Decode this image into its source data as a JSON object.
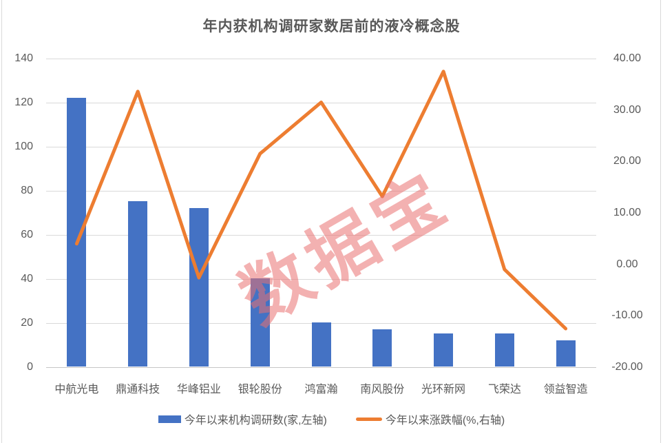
{
  "title": "年内获机构调研家数居前的液冷概念股",
  "watermark": "数据宝",
  "legend": [
    {
      "label": "今年以来机构调研数(家,左轴)",
      "marker": "bar-swatch",
      "color": "#4472C4"
    },
    {
      "label": "今年以来涨跌幅(%,右轴)",
      "marker": "line-swatch",
      "color": "#ED7D31"
    }
  ],
  "colors": {
    "bar": "#4472C4",
    "line": "#ED7D31",
    "grid": "#D9D9D9",
    "axis_text": "#595959",
    "watermark": "rgba(233,113,113,0.55)",
    "background": "#FFFFFF"
  },
  "chart_data": {
    "type": "combo-bar-line",
    "title": "年内获机构调研家数居前的液冷概念股",
    "categories": [
      "中航光电",
      "鼎通科技",
      "华峰铝业",
      "银轮股份",
      "鸿富瀚",
      "南风股份",
      "光环新网",
      "飞荣达",
      "领益智造"
    ],
    "series": [
      {
        "name": "今年以来机构调研数(家,左轴)",
        "type": "bar",
        "axis": "left",
        "color": "#4472C4",
        "values": [
          122,
          75,
          72,
          40,
          20,
          17,
          15,
          15,
          12
        ]
      },
      {
        "name": "今年以来涨跌幅(%,右轴)",
        "type": "line",
        "axis": "right",
        "color": "#ED7D31",
        "values": [
          4.0,
          33.6,
          -2.6,
          21.5,
          31.5,
          13.2,
          37.5,
          -1.0,
          -12.5
        ]
      }
    ],
    "left_axis": {
      "min": 0,
      "max": 140,
      "step": 20,
      "tick_labels": [
        "140",
        "120",
        "100",
        "80",
        "60",
        "40",
        "20",
        "0"
      ]
    },
    "right_axis": {
      "min": -20,
      "max": 40,
      "step": 10,
      "tick_labels": [
        "40.00",
        "30.00",
        "20.00",
        "10.00",
        "0.00",
        "-10.00",
        "-20.00"
      ]
    },
    "grid": true,
    "legend_position": "bottom",
    "watermark": "数据宝"
  }
}
